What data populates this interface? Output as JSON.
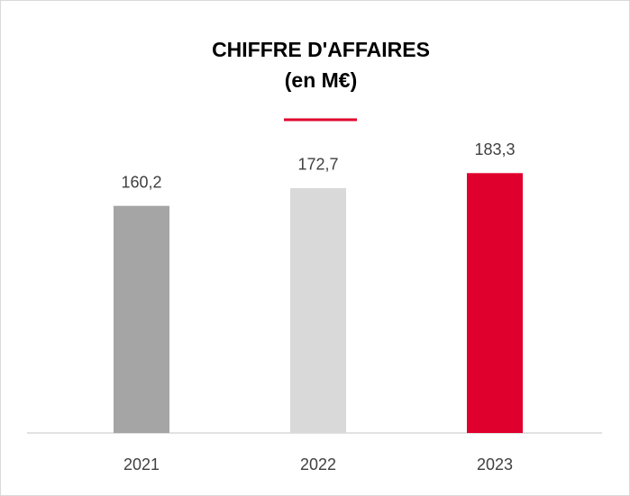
{
  "chart_data": {
    "type": "bar",
    "title": "CHIFFRE D'AFFAIRES",
    "subtitle": "(en M€)",
    "categories": [
      "2021",
      "2022",
      "2023"
    ],
    "values": [
      160.2,
      172.7,
      183.3
    ],
    "value_labels": [
      "160,2",
      "172,7",
      "183,3"
    ],
    "colors": [
      "#a5a5a5",
      "#d9d9d9",
      "#e0002d"
    ],
    "ylim": [
      0,
      200
    ]
  }
}
